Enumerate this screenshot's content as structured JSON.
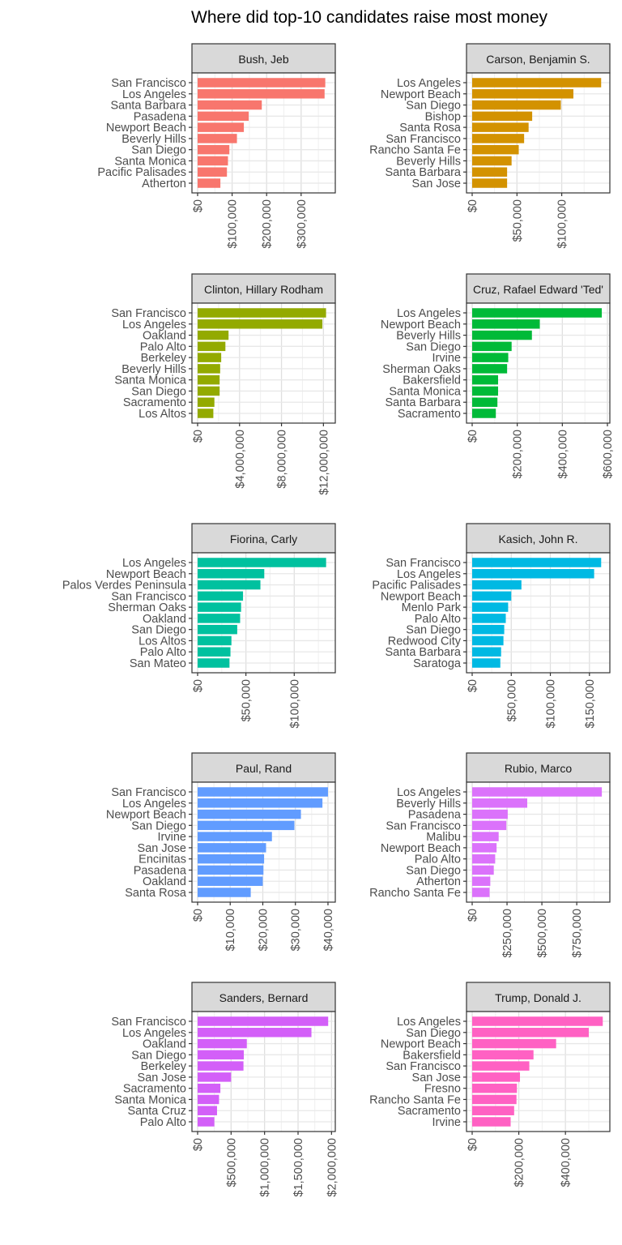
{
  "title": "Where did top-10 candidates raise most money",
  "chart_data": {
    "type": "bar",
    "orientation": "horizontal",
    "title": "Where did top-10 candidates raise most money",
    "facets": [
      {
        "name": "Bush, Jeb",
        "color": "#F8766D",
        "categories": [
          "San Francisco",
          "Los Angeles",
          "Santa Barbara",
          "Pasadena",
          "Newport Beach",
          "Beverly Hills",
          "San Diego",
          "Santa Monica",
          "Pacific Palisades",
          "Atherton"
        ],
        "values": [
          370000,
          368000,
          186000,
          148000,
          134000,
          114000,
          92000,
          88000,
          85000,
          66000
        ],
        "xlim": [
          0,
          392000
        ],
        "ticks": [
          0,
          100000,
          200000,
          300000
        ],
        "tick_labels": [
          "$0",
          "$100,000",
          "$200,000",
          "$300,000"
        ]
      },
      {
        "name": "Carson, Benjamin S.",
        "color": "#D39200",
        "categories": [
          "Los Angeles",
          "Newport Beach",
          "San Diego",
          "Bishop",
          "Santa Rosa",
          "San Francisco",
          "Rancho Santa Fe",
          "Beverly Hills",
          "Santa Barbara",
          "San Jose"
        ],
        "values": [
          144000,
          113000,
          99000,
          67000,
          63000,
          58000,
          52000,
          44000,
          39000,
          39000
        ],
        "xlim": [
          0,
          151000
        ],
        "ticks": [
          0,
          50000,
          100000
        ],
        "tick_labels": [
          "$0",
          "$50,000",
          "$100,000"
        ]
      },
      {
        "name": "Clinton, Hillary Rodham",
        "color": "#93AA00",
        "categories": [
          "San Francisco",
          "Los Angeles",
          "Oakland",
          "Palo Alto",
          "Berkeley",
          "Beverly Hills",
          "Santa Monica",
          "San Diego",
          "Sacramento",
          "Los Altos"
        ],
        "values": [
          12250000,
          11900000,
          2950000,
          2650000,
          2250000,
          2150000,
          2100000,
          2100000,
          1600000,
          1500000
        ],
        "xlim": [
          0,
          12900000
        ],
        "ticks": [
          0,
          4000000,
          8000000,
          12000000
        ],
        "tick_labels": [
          "$0",
          "$4,000,000",
          "$8,000,000",
          "$12,000,000"
        ]
      },
      {
        "name": "Cruz, Rafael Edward 'Ted'",
        "color": "#00BA38",
        "categories": [
          "Los Angeles",
          "Newport Beach",
          "Beverly Hills",
          "San Diego",
          "Irvine",
          "Sherman Oaks",
          "Bakersfield",
          "Santa Monica",
          "Santa Barbara",
          "Sacramento"
        ],
        "values": [
          575000,
          300000,
          265000,
          175000,
          160000,
          155000,
          115000,
          115000,
          112000,
          105000
        ],
        "xlim": [
          0,
          600000
        ],
        "ticks": [
          0,
          200000,
          400000,
          600000
        ],
        "tick_labels": [
          "$0",
          "$200,000",
          "$400,000",
          "$600,000"
        ]
      },
      {
        "name": "Fiorina, Carly",
        "color": "#00C19F",
        "categories": [
          "Los Angeles",
          "Newport Beach",
          "Palos Verdes Peninsula",
          "San Francisco",
          "Sherman Oaks",
          "Oakland",
          "San Diego",
          "Los Altos",
          "Palo Alto",
          "San Mateo"
        ],
        "values": [
          133000,
          69000,
          65000,
          47000,
          45000,
          44000,
          41000,
          35000,
          34000,
          33000
        ],
        "xlim": [
          0,
          140000
        ],
        "ticks": [
          0,
          50000,
          100000
        ],
        "tick_labels": [
          "$0",
          "$50,000",
          "$100,000"
        ]
      },
      {
        "name": "Kasich, John R.",
        "color": "#00B9E3",
        "categories": [
          "San Francisco",
          "Los Angeles",
          "Pacific Palisades",
          "Newport Beach",
          "Menlo Park",
          "Palo Alto",
          "San Diego",
          "Redwood City",
          "Santa Barbara",
          "Saratoga"
        ],
        "values": [
          165000,
          156000,
          63000,
          50000,
          46000,
          43000,
          41000,
          40000,
          37000,
          36000
        ],
        "xlim": [
          0,
          173000
        ],
        "ticks": [
          0,
          50000,
          100000,
          150000
        ],
        "tick_labels": [
          "$0",
          "$50,000",
          "$100,000",
          "$150,000"
        ]
      },
      {
        "name": "Paul, Rand",
        "color": "#619CFF",
        "categories": [
          "San Francisco",
          "Los Angeles",
          "Newport Beach",
          "San Diego",
          "Irvine",
          "San Jose",
          "Encinitas",
          "Pasadena",
          "Oakland",
          "Santa Rosa"
        ],
        "values": [
          40000,
          38300,
          31700,
          29700,
          22800,
          21000,
          20400,
          20200,
          20000,
          16300
        ],
        "xlim": [
          0,
          41500
        ],
        "ticks": [
          0,
          10000,
          20000,
          30000,
          40000
        ],
        "tick_labels": [
          "$0",
          "$10,000",
          "$20,000",
          "$30,000",
          "$40,000"
        ]
      },
      {
        "name": "Rubio, Marco",
        "color": "#DB72FB",
        "categories": [
          "Los Angeles",
          "Beverly Hills",
          "Pasadena",
          "San Francisco",
          "Malibu",
          "Newport Beach",
          "Palo Alto",
          "San Diego",
          "Atherton",
          "Rancho Santa Fe"
        ],
        "values": [
          930000,
          395000,
          255000,
          245000,
          190000,
          175000,
          165000,
          155000,
          130000,
          125000
        ],
        "xlim": [
          0,
          970000
        ],
        "ticks": [
          0,
          250000,
          500000,
          750000
        ],
        "tick_labels": [
          "$0",
          "$250,000",
          "$500,000",
          "$750,000"
        ]
      },
      {
        "name": "Sanders, Bernard",
        "color": "#D35FF8",
        "categories": [
          "San Francisco",
          "Los Angeles",
          "Oakland",
          "San Diego",
          "Berkeley",
          "San Jose",
          "Sacramento",
          "Santa Monica",
          "Santa Cruz",
          "Palo Alto"
        ],
        "values": [
          1950000,
          1700000,
          735000,
          690000,
          685000,
          500000,
          340000,
          320000,
          290000,
          250000
        ],
        "xlim": [
          0,
          2020000
        ],
        "ticks": [
          0,
          500000,
          1000000,
          1500000,
          2000000
        ],
        "tick_labels": [
          "$0",
          "$500,000",
          "$1,000,000",
          "$1,500,000",
          "$2,000,000"
        ]
      },
      {
        "name": "Trump, Donald J.",
        "color": "#FF61C3",
        "categories": [
          "Los Angeles",
          "San Diego",
          "Newport Beach",
          "Bakersfield",
          "San Francisco",
          "San Jose",
          "Fresno",
          "Rancho Santa Fe",
          "Sacramento",
          "Irvine"
        ],
        "values": [
          560000,
          500000,
          360000,
          263000,
          245000,
          205000,
          192000,
          190000,
          180000,
          165000
        ],
        "xlim": [
          0,
          580000
        ],
        "ticks": [
          0,
          200000,
          400000
        ],
        "tick_labels": [
          "$0",
          "$200,000",
          "$400,000"
        ]
      }
    ]
  }
}
